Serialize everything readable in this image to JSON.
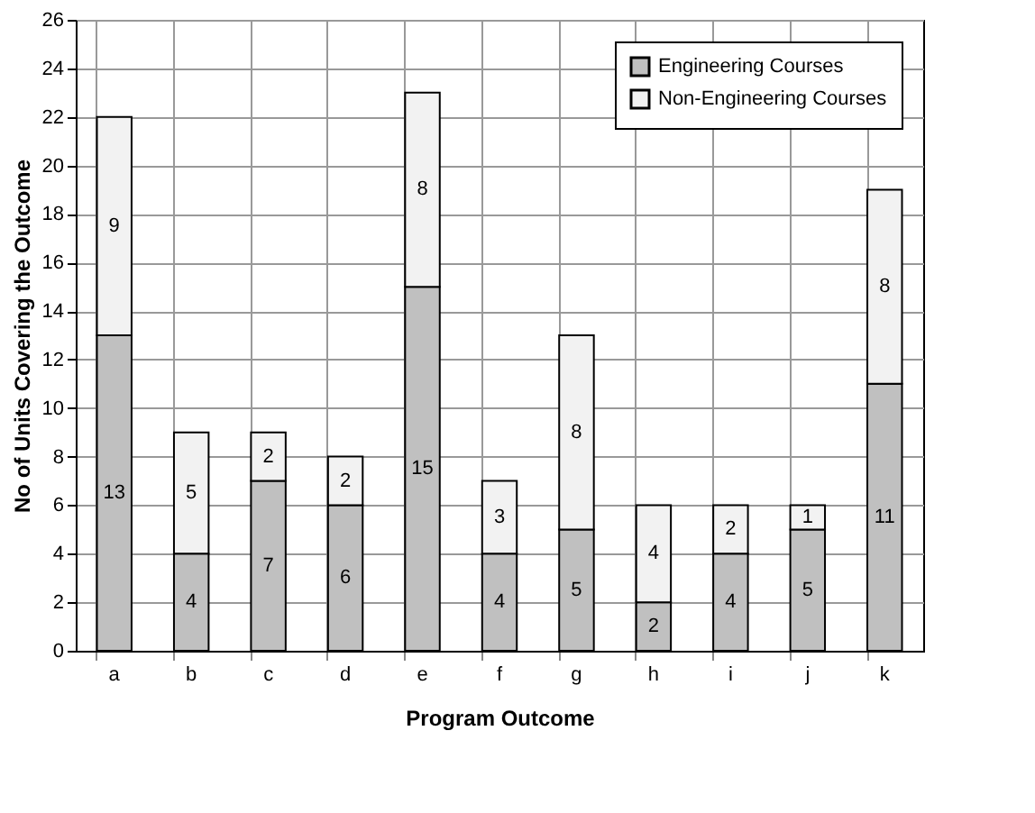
{
  "chart_data": {
    "type": "bar",
    "stacked": true,
    "xlabel": "Program Outcome",
    "ylabel": "No of Units Covering the Outcome",
    "categories": [
      "a",
      "b",
      "c",
      "d",
      "e",
      "f",
      "g",
      "h",
      "i",
      "j",
      "k"
    ],
    "series": [
      {
        "name": "Engineering Courses",
        "color": "#c0c0c0",
        "values": [
          13,
          4,
          7,
          6,
          15,
          4,
          5,
          2,
          4,
          5,
          11
        ]
      },
      {
        "name": "Non-Engineering Courses",
        "color": "#f2f2f2",
        "values": [
          9,
          5,
          2,
          2,
          8,
          3,
          8,
          4,
          2,
          1,
          8
        ]
      }
    ],
    "ylim": [
      0,
      26
    ],
    "yticks": [
      0,
      2,
      4,
      6,
      8,
      10,
      12,
      14,
      16,
      18,
      20,
      22,
      24,
      26
    ],
    "grid": true,
    "legend": "top right",
    "data_labels": true
  }
}
